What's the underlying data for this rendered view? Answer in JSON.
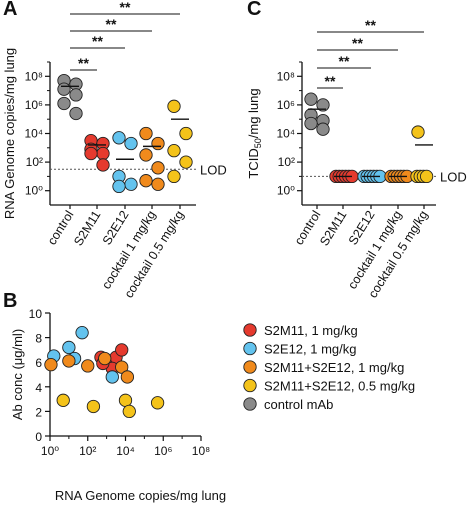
{
  "colors": {
    "S2M11": "#e53a2e",
    "S2E12": "#63c3ee",
    "cocktail_1": "#f08a1c",
    "cocktail_05": "#f4c31a",
    "control": "#8a8a8a",
    "mean_line": "#111111",
    "lod_line": "#555555"
  },
  "chart_data": [
    {
      "panel": "A",
      "type": "scatter",
      "ylabel": "RNA Genome copies/mg lung",
      "yscale": "log",
      "ylim_exponent": [
        -1,
        9
      ],
      "yticks": [
        {
          "exp": 0,
          "label": "10⁰"
        },
        {
          "exp": 2,
          "label": "10²"
        },
        {
          "exp": 4,
          "label": "10⁴"
        },
        {
          "exp": 6,
          "label": "10⁶"
        },
        {
          "exp": 8,
          "label": "10⁸"
        }
      ],
      "lod": {
        "label": "LOD",
        "exp": 1.5
      },
      "categories": [
        {
          "label": "control",
          "color": "control",
          "mean_exp": 7.3,
          "points_exp": [
            7.7,
            7.45,
            7.1,
            6.7,
            6.1,
            5.4
          ]
        },
        {
          "label": "S2M11",
          "color": "S2M11",
          "mean_exp": 3.2,
          "points_exp": [
            3.5,
            3.3,
            2.9,
            2.6,
            2.6,
            1.8
          ]
        },
        {
          "label": "S2E12",
          "color": "S2E12",
          "mean_exp": 2.2,
          "points_exp": [
            3.7,
            3.3,
            1.0,
            0.45,
            0.3
          ]
        },
        {
          "label": "cocktail 1 mg/kg",
          "color": "cocktail_1",
          "mean_exp": 3.1,
          "points_exp": [
            4.0,
            3.3,
            2.5,
            1.6,
            0.7,
            0.45
          ]
        },
        {
          "label": "cocktail 0.5 mg/kg",
          "color": "cocktail_05",
          "mean_exp": 5.0,
          "points_exp": [
            5.9,
            4.0,
            2.8,
            2.0,
            1.0
          ]
        }
      ],
      "significance": [
        {
          "from": 0,
          "to": 4,
          "label": "**"
        },
        {
          "from": 0,
          "to": 3,
          "label": "**"
        },
        {
          "from": 0,
          "to": 2,
          "label": "**"
        },
        {
          "from": 0,
          "to": 1,
          "label": "**"
        }
      ]
    },
    {
      "panel": "C",
      "type": "scatter",
      "ylabel_main": "TCID",
      "ylabel_sub": "50",
      "ylabel_rest": "/mg lung",
      "yscale": "log",
      "ylim_exponent": [
        -1,
        9
      ],
      "yticks": [
        {
          "exp": 0,
          "label": "10⁰"
        },
        {
          "exp": 2,
          "label": "10²"
        },
        {
          "exp": 4,
          "label": "10⁴"
        },
        {
          "exp": 6,
          "label": "10⁶"
        },
        {
          "exp": 8,
          "label": "10⁸"
        }
      ],
      "lod": {
        "label": "LOD",
        "exp": 1.0
      },
      "categories": [
        {
          "label": "control",
          "color": "control",
          "mean_exp": 5.7,
          "points_exp": [
            6.4,
            6.0,
            5.3,
            4.9,
            4.7,
            4.3
          ]
        },
        {
          "label": "S2M11",
          "color": "S2M11",
          "mean_exp": 1.0,
          "points_exp": [
            1.0,
            1.0,
            1.0,
            1.0,
            1.0,
            1.0
          ],
          "cluster": true
        },
        {
          "label": "S2E12",
          "color": "S2E12",
          "mean_exp": 1.0,
          "points_exp": [
            1.0,
            1.0,
            1.0,
            1.0,
            1.0,
            1.0
          ],
          "cluster": true
        },
        {
          "label": "cocktail 1 mg/kg",
          "color": "cocktail_1",
          "mean_exp": 1.0,
          "points_exp": [
            1.0,
            1.0,
            1.0,
            1.0,
            1.0,
            1.0
          ],
          "cluster": true
        },
        {
          "label": "cocktail 0.5 mg/kg",
          "color": "cocktail_05",
          "mean_exp": 3.2,
          "points_exp": [
            4.1,
            1.0,
            1.0,
            1.0,
            1.0
          ],
          "cluster": true
        }
      ],
      "significance": [
        {
          "from": 0,
          "to": 4,
          "label": "**"
        },
        {
          "from": 0,
          "to": 3,
          "label": "**"
        },
        {
          "from": 0,
          "to": 2,
          "label": "**"
        },
        {
          "from": 0,
          "to": 1,
          "label": "**"
        }
      ]
    },
    {
      "panel": "B",
      "type": "scatter",
      "xlabel": "RNA Genome copies/mg lung",
      "ylabel": "Ab conc (μg/ml)",
      "xscale": "log",
      "xlim_exponent": [
        0,
        8
      ],
      "ylim": [
        0,
        10
      ],
      "xticks": [
        {
          "exp": 0,
          "label": "10⁰"
        },
        {
          "exp": 2,
          "label": "10²"
        },
        {
          "exp": 4,
          "label": "10⁴"
        },
        {
          "exp": 6,
          "label": "10⁶"
        },
        {
          "exp": 8,
          "label": "10⁸"
        }
      ],
      "yticks": [
        0,
        2,
        4,
        6,
        8,
        10
      ],
      "series": [
        {
          "name": "S2M11, 1 mg/kg",
          "color": "S2M11",
          "points": [
            [
              2.7,
              6.4
            ],
            [
              3.1,
              6.1
            ],
            [
              3.5,
              6.4
            ],
            [
              3.3,
              5.5
            ],
            [
              3.8,
              7.0
            ],
            [
              2.8,
              5.9
            ]
          ]
        },
        {
          "name": "S2E12, 1 mg/kg",
          "color": "S2E12",
          "points": [
            [
              0.2,
              6.5
            ],
            [
              1.0,
              7.2
            ],
            [
              1.3,
              6.3
            ],
            [
              1.7,
              8.4
            ],
            [
              3.3,
              4.8
            ]
          ]
        },
        {
          "name": "S2M11+S2E12, 1 mg/kg",
          "color": "cocktail_1",
          "points": [
            [
              0.05,
              5.8
            ],
            [
              1.0,
              6.1
            ],
            [
              2.0,
              5.7
            ],
            [
              2.9,
              6.3
            ],
            [
              3.8,
              5.6
            ],
            [
              4.1,
              4.8
            ]
          ]
        },
        {
          "name": "S2M11+S2E12, 0.5 mg/kg",
          "color": "cocktail_05",
          "points": [
            [
              0.7,
              2.9
            ],
            [
              2.3,
              2.4
            ],
            [
              4.0,
              2.9
            ],
            [
              4.2,
              2.0
            ],
            [
              5.7,
              2.7
            ]
          ]
        },
        {
          "name": "control mAb",
          "color": "control",
          "points": []
        }
      ]
    }
  ]
}
